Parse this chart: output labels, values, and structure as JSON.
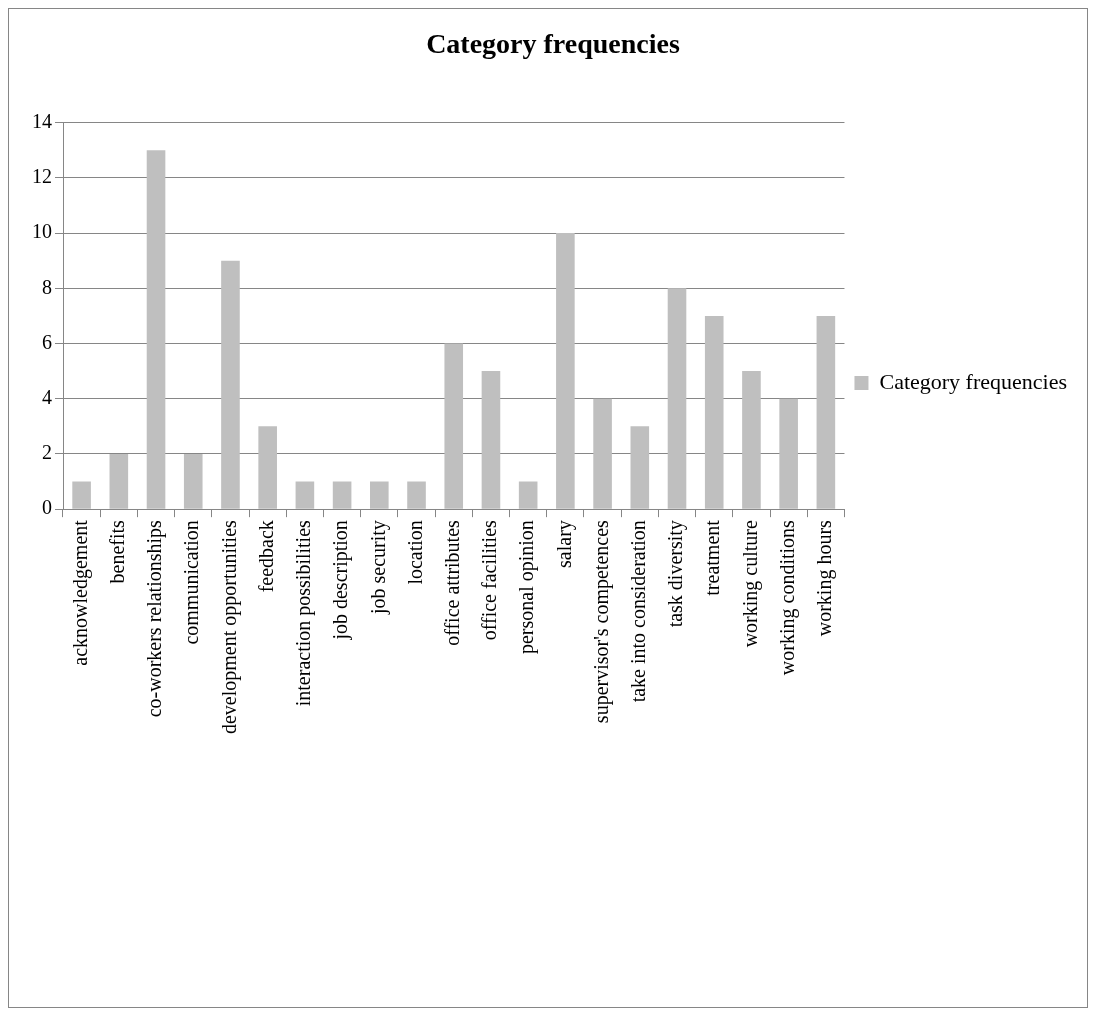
{
  "chart_data": {
    "type": "bar",
    "title": "Category frequencies",
    "categories": [
      "acknowledgement",
      "benefits",
      "co-workers relationships",
      "communication",
      "development opportunities",
      "feedback",
      "interaction possibilities",
      "job description",
      "job security",
      "location",
      "office attributes",
      "office facilities",
      "personal opinion",
      "salary",
      "supervisor's competences",
      "take into consideration",
      "task diversity",
      "treatment",
      "working culture",
      "working conditions",
      "working hours"
    ],
    "series": [
      {
        "name": "Category frequencies",
        "color": "#bfbfbf",
        "values": [
          1,
          2,
          13,
          2,
          9,
          3,
          1,
          1,
          1,
          1,
          6,
          5,
          1,
          10,
          4,
          3,
          8,
          7,
          5,
          4,
          7
        ]
      }
    ],
    "ylim": [
      0,
      14
    ],
    "yticks": [
      0,
      2,
      4,
      6,
      8,
      10,
      12,
      14
    ],
    "grid": "y",
    "legend": "right"
  }
}
